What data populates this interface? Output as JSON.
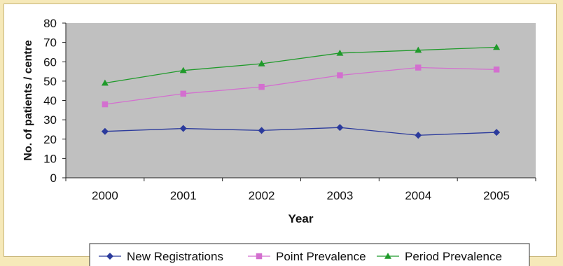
{
  "chart_data": {
    "type": "line",
    "title": "",
    "xlabel": "Year",
    "ylabel": "No. of patients / centre",
    "categories": [
      "2000",
      "2001",
      "2002",
      "2003",
      "2004",
      "2005"
    ],
    "ylim": [
      0,
      80
    ],
    "yticks": [
      0,
      10,
      20,
      30,
      40,
      50,
      60,
      70,
      80
    ],
    "grid": false,
    "plot_background": "#c0c0c0",
    "legend_position": "bottom",
    "series": [
      {
        "name": "New Registrations",
        "color": "#2b3a9c",
        "marker": "diamond",
        "values": [
          24,
          25.5,
          24.5,
          26,
          22,
          23.5
        ]
      },
      {
        "name": "Point Prevalence",
        "color": "#d36fcf",
        "marker": "square",
        "values": [
          38,
          43.5,
          47,
          53,
          57,
          56
        ]
      },
      {
        "name": "Period Prevalence",
        "color": "#1f9a2a",
        "marker": "triangle",
        "values": [
          49,
          55.5,
          59,
          64.5,
          66,
          67.5
        ]
      }
    ]
  }
}
